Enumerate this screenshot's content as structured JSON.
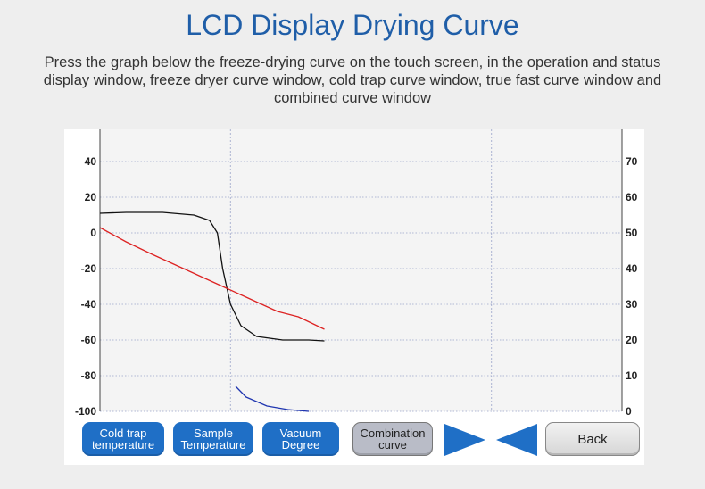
{
  "header": {
    "title": "LCD Display Drying Curve",
    "description": "Press the graph below the freeze-drying curve on the touch screen, in the operation and status display window, freeze dryer curve window, cold trap curve window, true fast curve window and combined curve window"
  },
  "chart_data": {
    "type": "line",
    "title": "",
    "y_left_ticks": [
      "40",
      "20",
      "0",
      "-20",
      "-40",
      "-60",
      "-80",
      "-100"
    ],
    "y_right_ticks": [
      "70",
      "60",
      "50",
      "40",
      "30",
      "20",
      "10",
      "0"
    ],
    "ylim_left": [
      -100,
      50
    ],
    "ylim_right": [
      0,
      75
    ],
    "xlim": [
      0,
      100
    ],
    "grid": true,
    "colors": {
      "black": "#111111",
      "red": "#dd2222",
      "blue": "#1f35b0",
      "grid": "#9aa3c9"
    },
    "series": [
      {
        "color": "black",
        "axis": "left",
        "points": [
          [
            0,
            11
          ],
          [
            5,
            11.5
          ],
          [
            12,
            11.5
          ],
          [
            18,
            10
          ],
          [
            21,
            7
          ],
          [
            22.5,
            0
          ],
          [
            23.5,
            -20
          ],
          [
            25,
            -40
          ],
          [
            27,
            -52
          ],
          [
            30,
            -58
          ],
          [
            35,
            -60
          ],
          [
            40,
            -60
          ],
          [
            43,
            -60.5
          ]
        ]
      },
      {
        "color": "red",
        "axis": "left",
        "points": [
          [
            0,
            3
          ],
          [
            5,
            -5
          ],
          [
            10,
            -12
          ],
          [
            16,
            -20
          ],
          [
            22,
            -28
          ],
          [
            28,
            -36
          ],
          [
            34,
            -44
          ],
          [
            38,
            -47
          ],
          [
            43,
            -54
          ]
        ]
      },
      {
        "color": "blue",
        "axis": "right",
        "points": [
          [
            26,
            7
          ],
          [
            28,
            4
          ],
          [
            32,
            1.5
          ],
          [
            36,
            0.5
          ],
          [
            40,
            0
          ]
        ]
      }
    ]
  },
  "buttons": {
    "cold_trap": "Cold trap\ntemperature",
    "sample": "Sample\nTemperature",
    "vacuum": "Vacuum\nDegree",
    "combination": "Combination\ncurve",
    "back": "Back"
  },
  "icons": {
    "next": "triangle-right-icon",
    "prev": "triangle-left-icon"
  }
}
